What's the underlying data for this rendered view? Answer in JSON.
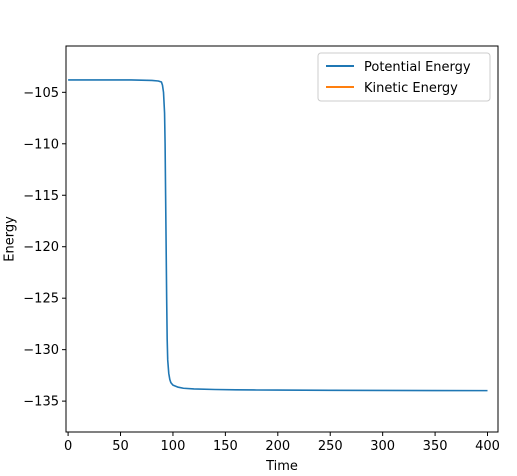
{
  "chart_data": {
    "type": "line",
    "title": "",
    "xlabel": "Time",
    "ylabel": "Energy",
    "xlim": [
      -2,
      410
    ],
    "ylim": [
      -138,
      -100.5
    ],
    "xticks": [
      0,
      50,
      100,
      150,
      200,
      250,
      300,
      350,
      400
    ],
    "yticks": [
      -105,
      -110,
      -115,
      -120,
      -125,
      -130,
      -135
    ],
    "xtick_labels": [
      "0",
      "50",
      "100",
      "150",
      "200",
      "250",
      "300",
      "350",
      "400"
    ],
    "ytick_labels": [
      "−105",
      "−110",
      "−115",
      "−120",
      "−125",
      "−130",
      "−135"
    ],
    "grid": false,
    "legend_position": "top-right",
    "series": [
      {
        "name": "Potential Energy",
        "color": "#1f77b4",
        "x": [
          0,
          20,
          40,
          60,
          80,
          86,
          89,
          90,
          91,
          92,
          92.5,
          93,
          93.5,
          94,
          94.5,
          95,
          96,
          97,
          98,
          100,
          105,
          110,
          120,
          140,
          160,
          180,
          200,
          250,
          300,
          350,
          400
        ],
        "y": [
          -103.8,
          -103.8,
          -103.8,
          -103.8,
          -103.85,
          -103.9,
          -104.0,
          -104.3,
          -105.0,
          -107.0,
          -110.0,
          -115.0,
          -120.0,
          -125.0,
          -129.0,
          -131.0,
          -132.3,
          -132.9,
          -133.2,
          -133.45,
          -133.65,
          -133.75,
          -133.82,
          -133.87,
          -133.9,
          -133.92,
          -133.93,
          -133.95,
          -133.96,
          -133.97,
          -133.98
        ]
      },
      {
        "name": "Kinetic Energy",
        "color": "#ff7f0e",
        "x": [],
        "y": []
      }
    ]
  }
}
